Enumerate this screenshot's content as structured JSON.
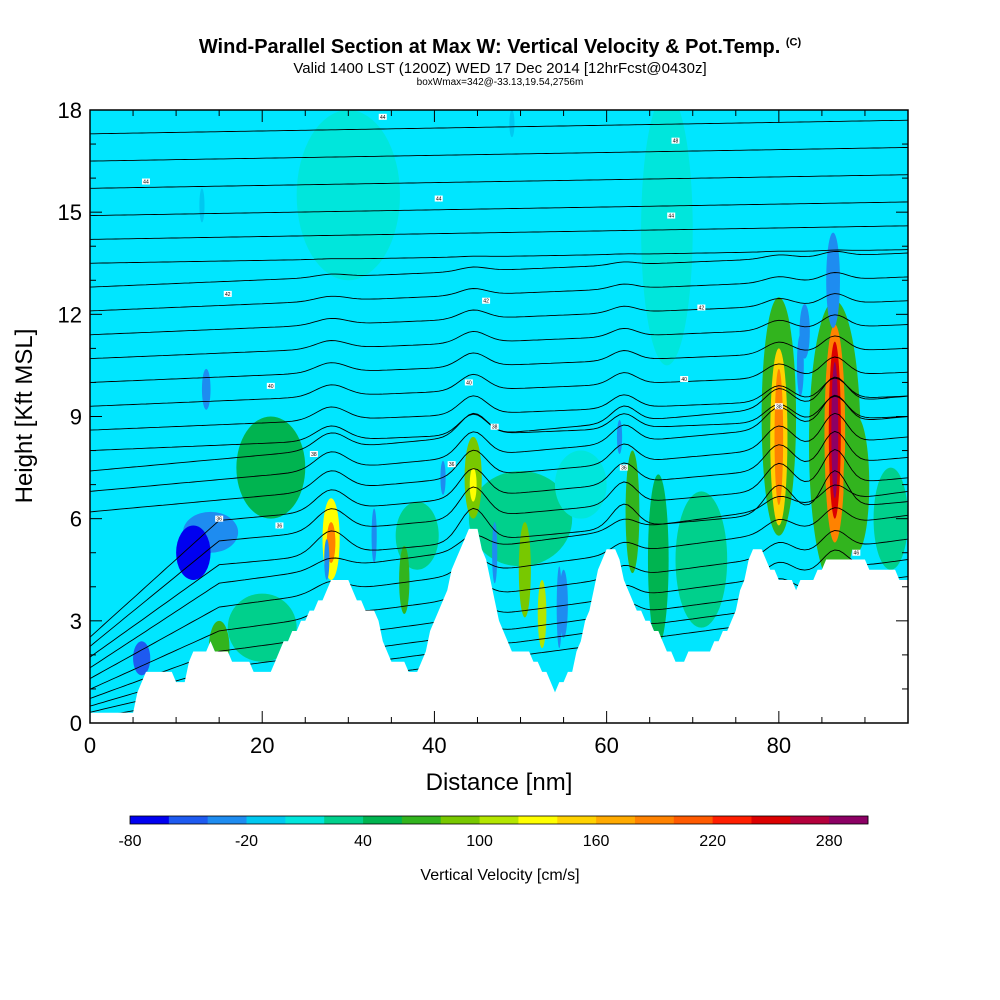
{
  "header": {
    "title_main": "Wind-Parallel Section at Max W: Vertical Velocity & Pot.Temp.",
    "title_mark": "(C)",
    "subtitle": "Valid 1400 LST (1200Z) WED 17 Dec 2014 [12hrFcst@0430z]",
    "subtitle_small": "boxWmax=342@-33.13,19.54,2756m"
  },
  "chart_data": {
    "type": "heatmap",
    "title": "Wind-Parallel Section at Max W: Vertical Velocity & Pot.Temp.",
    "xlabel": "Distance [nm]",
    "ylabel": "Height [Kft MSL]",
    "xlim": [
      0,
      95
    ],
    "ylim": [
      0,
      18
    ],
    "x_ticks": [
      0,
      20,
      40,
      60,
      80
    ],
    "y_ticks": [
      0,
      3,
      6,
      9,
      12,
      15,
      18
    ],
    "colorbar": {
      "label": "Vertical Velocity [cm/s]",
      "tick_values": [
        -80,
        -20,
        40,
        100,
        160,
        220,
        280
      ],
      "bin_min": -80,
      "bin_step": 20,
      "colors": [
        "#0000f0",
        "#1e5af0",
        "#1e8cf0",
        "#00c8f0",
        "#00e6dc",
        "#00d08c",
        "#00b450",
        "#32b41e",
        "#78c800",
        "#b4e600",
        "#ffff00",
        "#ffd200",
        "#ffaa00",
        "#ff8200",
        "#ff5a00",
        "#ff1e00",
        "#dc0000",
        "#b4003c",
        "#8c0064"
      ]
    },
    "terrain_kft": [
      [
        0,
        0.3
      ],
      [
        5,
        0.4
      ],
      [
        6,
        1.2
      ],
      [
        7,
        1.6
      ],
      [
        9,
        1.6
      ],
      [
        10,
        1.3
      ],
      [
        11,
        1.3
      ],
      [
        12,
        2.0
      ],
      [
        14,
        2.3
      ],
      [
        15,
        2.0
      ],
      [
        17,
        1.9
      ],
      [
        19,
        1.6
      ],
      [
        21,
        1.6
      ],
      [
        23,
        2.5
      ],
      [
        25,
        3.0
      ],
      [
        27,
        3.6
      ],
      [
        28,
        4.2
      ],
      [
        30,
        4.2
      ],
      [
        31,
        3.6
      ],
      [
        33,
        3.2
      ],
      [
        34,
        2.5
      ],
      [
        35,
        1.9
      ],
      [
        36,
        1.8
      ],
      [
        37,
        1.5
      ],
      [
        38,
        1.4
      ],
      [
        39,
        2.2
      ],
      [
        40,
        3.0
      ],
      [
        41,
        3.6
      ],
      [
        42,
        4.4
      ],
      [
        43,
        5.2
      ],
      [
        44,
        5.6
      ],
      [
        45,
        5.6
      ],
      [
        46,
        4.8
      ],
      [
        47,
        3.6
      ],
      [
        48,
        2.6
      ],
      [
        49,
        2.2
      ],
      [
        50,
        2.2
      ],
      [
        51,
        2.0
      ],
      [
        52,
        1.8
      ],
      [
        53,
        1.4
      ],
      [
        54,
        1.0
      ],
      [
        55,
        1.2
      ],
      [
        56,
        1.6
      ],
      [
        57,
        2.4
      ],
      [
        58,
        3.4
      ],
      [
        59,
        4.4
      ],
      [
        60,
        5.1
      ],
      [
        61,
        5.1
      ],
      [
        62,
        4.3
      ],
      [
        63,
        3.6
      ],
      [
        64,
        3.2
      ],
      [
        65,
        3.0
      ],
      [
        66,
        2.6
      ],
      [
        67,
        2.2
      ],
      [
        68,
        1.9
      ],
      [
        69,
        1.9
      ],
      [
        70,
        2.1
      ],
      [
        72,
        2.2
      ],
      [
        73,
        2.4
      ],
      [
        74,
        2.8
      ],
      [
        75,
        3.4
      ],
      [
        76,
        4.3
      ],
      [
        77,
        5.0
      ],
      [
        78,
        5.2
      ],
      [
        79,
        4.6
      ],
      [
        80,
        4.2
      ],
      [
        82,
        4.0
      ],
      [
        84,
        4.2
      ],
      [
        85,
        4.6
      ],
      [
        86,
        4.9
      ],
      [
        90,
        4.8
      ],
      [
        91,
        4.4
      ],
      [
        92,
        4.6
      ],
      [
        94,
        4.3
      ],
      [
        95,
        4.3
      ]
    ],
    "w_cells": [
      {
        "x": 12,
        "y": 5.0,
        "rx": 2.0,
        "ry": 0.8,
        "w": -75
      },
      {
        "x": 14,
        "y": 5.6,
        "rx": 3.2,
        "ry": 0.6,
        "w": -40
      },
      {
        "x": 6,
        "y": 1.9,
        "rx": 1.0,
        "ry": 0.5,
        "w": -50
      },
      {
        "x": 13.5,
        "y": 9.8,
        "rx": 0.5,
        "ry": 0.6,
        "w": -30
      },
      {
        "x": 28,
        "y": 5.4,
        "rx": 1.0,
        "ry": 1.2,
        "w": 120
      },
      {
        "x": 28,
        "y": 5.3,
        "rx": 0.5,
        "ry": 0.6,
        "w": 180
      },
      {
        "x": 44.5,
        "y": 7.2,
        "rx": 1.0,
        "ry": 1.2,
        "w": 90
      },
      {
        "x": 44.5,
        "y": 7.0,
        "rx": 0.4,
        "ry": 0.5,
        "w": 130
      },
      {
        "x": 36.5,
        "y": 4.2,
        "rx": 0.6,
        "ry": 1.0,
        "w": 60
      },
      {
        "x": 50.5,
        "y": 4.5,
        "rx": 0.7,
        "ry": 1.4,
        "w": 80
      },
      {
        "x": 52.5,
        "y": 3.2,
        "rx": 0.5,
        "ry": 1.0,
        "w": 100
      },
      {
        "x": 55,
        "y": 3.5,
        "rx": 0.5,
        "ry": 1.0,
        "w": -30
      },
      {
        "x": 63,
        "y": 6.2,
        "rx": 0.8,
        "ry": 1.8,
        "w": 70
      },
      {
        "x": 66,
        "y": 4.8,
        "rx": 1.2,
        "ry": 2.5,
        "w": 40
      },
      {
        "x": 21,
        "y": 7.5,
        "rx": 4.0,
        "ry": 1.5,
        "w": 40
      },
      {
        "x": 80,
        "y": 9.0,
        "rx": 2.0,
        "ry": 3.5,
        "w": 60
      },
      {
        "x": 80,
        "y": 8.4,
        "rx": 1.0,
        "ry": 2.6,
        "w": 140
      },
      {
        "x": 80,
        "y": 8.4,
        "rx": 0.5,
        "ry": 2.0,
        "w": 190
      },
      {
        "x": 86.5,
        "y": 8.2,
        "rx": 3.0,
        "ry": 4.2,
        "w": 60
      },
      {
        "x": 86.5,
        "y": 8.5,
        "rx": 1.2,
        "ry": 3.2,
        "w": 190
      },
      {
        "x": 86.5,
        "y": 8.6,
        "rx": 0.7,
        "ry": 2.6,
        "w": 250
      },
      {
        "x": 86.5,
        "y": 8.6,
        "rx": 0.4,
        "ry": 2.0,
        "w": 300
      },
      {
        "x": 86.3,
        "y": 13.0,
        "rx": 0.8,
        "ry": 1.4,
        "w": -40
      },
      {
        "x": 83,
        "y": 11.5,
        "rx": 0.6,
        "ry": 0.8,
        "w": -30
      },
      {
        "x": 89,
        "y": 7.0,
        "rx": 1.5,
        "ry": 2.0,
        "w": 60
      },
      {
        "x": 93,
        "y": 6.0,
        "rx": 2.0,
        "ry": 1.5,
        "w": 20
      },
      {
        "x": 15,
        "y": 2.2,
        "rx": 1.2,
        "ry": 0.8,
        "w": 70
      },
      {
        "x": 20,
        "y": 2.8,
        "rx": 4.0,
        "ry": 1.0,
        "w": 30
      },
      {
        "x": 30,
        "y": 15.5,
        "rx": 6.0,
        "ry": 2.5,
        "w": 10
      },
      {
        "x": 67,
        "y": 14.5,
        "rx": 3.0,
        "ry": 4.0,
        "w": 10
      },
      {
        "x": 50,
        "y": 6.0,
        "rx": 6.0,
        "ry": 1.4,
        "w": 25
      },
      {
        "x": 71,
        "y": 4.8,
        "rx": 3.0,
        "ry": 2.0,
        "w": 30
      },
      {
        "x": 38,
        "y": 5.5,
        "rx": 2.5,
        "ry": 1.0,
        "w": 20
      },
      {
        "x": 57,
        "y": 7.0,
        "rx": 3.0,
        "ry": 1.0,
        "w": 15
      }
    ],
    "theta_levels_base_kft": [
      0.3,
      0.7,
      1.1,
      1.6,
      2.2,
      2.9,
      3.6,
      4.3,
      5.0,
      5.6,
      6.2,
      6.8,
      7.4,
      8.0,
      8.6,
      9.3,
      10.0,
      10.7,
      11.4,
      12.1,
      12.8,
      13.5,
      14.2,
      14.9,
      15.7,
      16.5,
      17.3
    ],
    "theta_labels": [
      {
        "text": "44",
        "x": 34,
        "y": 17.8
      },
      {
        "text": "48",
        "x": 68,
        "y": 17.1
      },
      {
        "text": "44",
        "x": 6.5,
        "y": 15.9
      },
      {
        "text": "44",
        "x": 40.5,
        "y": 15.4
      },
      {
        "text": "44",
        "x": 67.5,
        "y": 14.9
      },
      {
        "text": "42",
        "x": 16,
        "y": 12.6
      },
      {
        "text": "42",
        "x": 46,
        "y": 12.4
      },
      {
        "text": "42",
        "x": 71,
        "y": 12.2
      },
      {
        "text": "40",
        "x": 21,
        "y": 9.9
      },
      {
        "text": "40",
        "x": 44,
        "y": 10.0
      },
      {
        "text": "40",
        "x": 69,
        "y": 10.1
      },
      {
        "text": "38",
        "x": 26,
        "y": 7.9
      },
      {
        "text": "38",
        "x": 47,
        "y": 8.7
      },
      {
        "text": "38",
        "x": 80,
        "y": 9.3
      },
      {
        "text": "36",
        "x": 15,
        "y": 6.0
      },
      {
        "text": "36",
        "x": 22,
        "y": 5.8
      },
      {
        "text": "36",
        "x": 42,
        "y": 7.6
      },
      {
        "text": "36",
        "x": 62,
        "y": 7.5
      },
      {
        "text": "46",
        "x": 89,
        "y": 5.0
      }
    ]
  }
}
